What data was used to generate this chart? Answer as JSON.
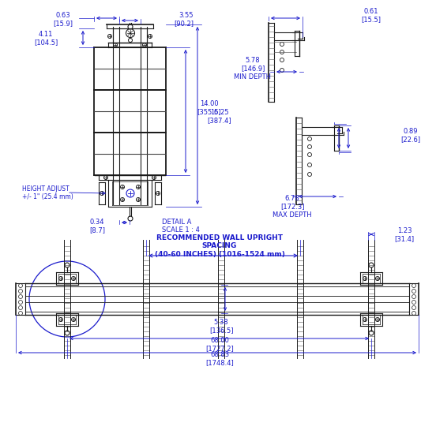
{
  "bg_color": "#ffffff",
  "line_color": "#1a1a1a",
  "dim_color": "#1a1acc",
  "fig_width": 5.32,
  "fig_height": 5.35,
  "dims": {
    "top_width": "3.55\n[90.2]",
    "top_left": "0.63\n[15.9]",
    "top_right": "0.61\n[15.5]",
    "h14": "14.00\n[355.6]",
    "h15": "15.25\n[387.4]",
    "h411": "4.11\n[104.5]",
    "height_adj": "HEIGHT ADJUST\n+/- 1\" (25.4 mm)",
    "d034": "0.34\n[8.7]",
    "detail_a": "DETAIL A\nSCALE 1 : 4",
    "min_depth": "5.78\n[146.9]\nMIN DEPTH",
    "max_depth": "6.78\n[172.3]\nMAX DEPTH",
    "d089": "0.89\n[22.6]",
    "wall_note": "RECOMMENDED WALL UPRIGHT\nSPACING\n(40-60 INCHES) (1016-1524 mm)",
    "d538": "5.38\n[136.5]",
    "d68": "68.00\n[1727.2]",
    "d6883": "68.83\n[1748.4]",
    "d123": "1.23\n[31.4]"
  }
}
